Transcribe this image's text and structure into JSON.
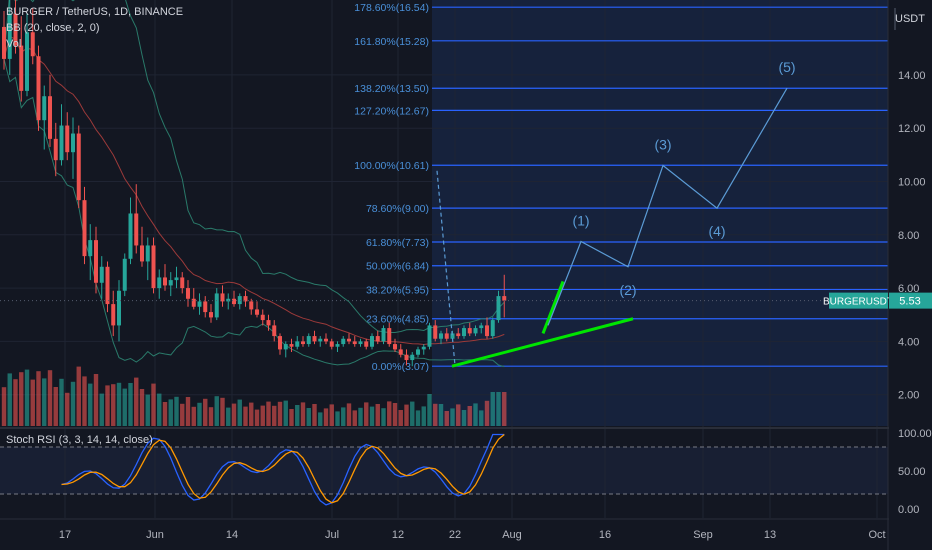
{
  "header": {
    "symbol_line": "BURGER / TetherUS, 1D, BINANCE",
    "bb_line": "BB (20, close, 2, 0)",
    "vol_line": "Vol"
  },
  "stoch": {
    "label": "Stoch RSI (3, 3, 14, 14, close)",
    "ticks": [
      "100.00",
      "50.00",
      "0.00"
    ]
  },
  "price_axis": {
    "unit": "USDT",
    "ticks": [
      "14.00",
      "12.00",
      "10.00",
      "8.00",
      "6.00",
      "4.00",
      "2.00"
    ],
    "badge_symbol": "BURGERUSDT",
    "badge_value": "5.53"
  },
  "time_axis": {
    "ticks": [
      "17",
      "Jun",
      "14",
      "Jul",
      "12",
      "22",
      "Aug",
      "16",
      "Sep",
      "13",
      "Oct"
    ]
  },
  "colors": {
    "background": "#131722",
    "up": "#26a69a",
    "down": "#ef5350",
    "fib_line": "#2962ff",
    "fib_text": "#4a90d9",
    "wave": "#5b9bd5",
    "trend": "#00e600",
    "badge": "#26a69a"
  },
  "chart_data": {
    "type": "candlestick",
    "fibonacci": [
      {
        "label": "178.60%(16.54)",
        "price": 16.54
      },
      {
        "label": "161.80%(15.28)",
        "price": 15.28
      },
      {
        "label": "138.20%(13.50)",
        "price": 13.5
      },
      {
        "label": "127.20%(12.67)",
        "price": 12.67
      },
      {
        "label": "100.00%(10.61)",
        "price": 10.61
      },
      {
        "label": "78.60%(9.00)",
        "price": 9.0
      },
      {
        "label": "61.80%(7.73)",
        "price": 7.73
      },
      {
        "label": "50.00%(6.84)",
        "price": 6.84
      },
      {
        "label": "38.20%(5.95)",
        "price": 5.95
      },
      {
        "label": "23.60%(4.85)",
        "price": 4.85
      },
      {
        "label": "0.00%(3.07)",
        "price": 3.07
      }
    ],
    "elliott_waves": [
      {
        "label": "(1)",
        "price": 7.75
      },
      {
        "label": "(2)",
        "price": 6.8
      },
      {
        "label": "(3)",
        "price": 10.6
      },
      {
        "label": "(4)",
        "price": 9.0
      },
      {
        "label": "(5)",
        "price": 13.5
      }
    ],
    "last_price": 5.53,
    "candles": [
      {
        "o": 15.8,
        "h": 16.4,
        "l": 14.2,
        "c": 14.6
      },
      {
        "o": 14.6,
        "h": 16.9,
        "l": 14.0,
        "c": 16.3
      },
      {
        "o": 16.3,
        "h": 17.0,
        "l": 14.8,
        "c": 15.1
      },
      {
        "o": 15.1,
        "h": 16.2,
        "l": 13.0,
        "c": 13.4
      },
      {
        "o": 13.4,
        "h": 16.3,
        "l": 13.2,
        "c": 15.6
      },
      {
        "o": 15.6,
        "h": 16.5,
        "l": 14.4,
        "c": 14.7
      },
      {
        "o": 14.7,
        "h": 15.1,
        "l": 11.9,
        "c": 12.3
      },
      {
        "o": 12.3,
        "h": 13.6,
        "l": 11.2,
        "c": 13.2
      },
      {
        "o": 13.2,
        "h": 14.0,
        "l": 11.3,
        "c": 11.6
      },
      {
        "o": 11.6,
        "h": 12.2,
        "l": 10.2,
        "c": 10.8
      },
      {
        "o": 10.8,
        "h": 12.9,
        "l": 10.6,
        "c": 12.1
      },
      {
        "o": 12.1,
        "h": 12.6,
        "l": 10.8,
        "c": 11.1
      },
      {
        "o": 11.1,
        "h": 12.4,
        "l": 10.1,
        "c": 11.8
      },
      {
        "o": 11.8,
        "h": 12.1,
        "l": 9.0,
        "c": 9.3
      },
      {
        "o": 9.3,
        "h": 9.8,
        "l": 6.9,
        "c": 7.2
      },
      {
        "o": 7.2,
        "h": 8.4,
        "l": 6.3,
        "c": 7.8
      },
      {
        "o": 7.8,
        "h": 8.3,
        "l": 5.8,
        "c": 6.2
      },
      {
        "o": 6.2,
        "h": 7.2,
        "l": 5.6,
        "c": 6.8
      },
      {
        "o": 6.8,
        "h": 7.0,
        "l": 5.1,
        "c": 5.4
      },
      {
        "o": 5.4,
        "h": 5.9,
        "l": 4.2,
        "c": 4.6
      },
      {
        "o": 4.6,
        "h": 6.3,
        "l": 4.0,
        "c": 5.9
      },
      {
        "o": 5.9,
        "h": 7.3,
        "l": 5.7,
        "c": 7.1
      },
      {
        "o": 7.1,
        "h": 9.4,
        "l": 6.9,
        "c": 8.8
      },
      {
        "o": 8.8,
        "h": 9.9,
        "l": 7.3,
        "c": 7.6
      },
      {
        "o": 7.6,
        "h": 8.3,
        "l": 6.8,
        "c": 7.0
      },
      {
        "o": 7.0,
        "h": 7.9,
        "l": 6.3,
        "c": 7.6
      },
      {
        "o": 7.6,
        "h": 7.9,
        "l": 5.8,
        "c": 6.0
      },
      {
        "o": 6.0,
        "h": 6.7,
        "l": 5.6,
        "c": 6.4
      },
      {
        "o": 6.4,
        "h": 6.9,
        "l": 5.9,
        "c": 6.1
      },
      {
        "o": 6.1,
        "h": 6.6,
        "l": 5.7,
        "c": 6.3
      },
      {
        "o": 6.3,
        "h": 6.8,
        "l": 6.0,
        "c": 6.4
      },
      {
        "o": 6.4,
        "h": 6.6,
        "l": 5.8,
        "c": 6.0
      },
      {
        "o": 6.0,
        "h": 6.3,
        "l": 5.3,
        "c": 5.6
      },
      {
        "o": 5.6,
        "h": 6.0,
        "l": 5.2,
        "c": 5.3
      },
      {
        "o": 5.3,
        "h": 5.8,
        "l": 5.0,
        "c": 5.5
      },
      {
        "o": 5.5,
        "h": 5.7,
        "l": 4.9,
        "c": 5.1
      },
      {
        "o": 5.1,
        "h": 5.4,
        "l": 4.7,
        "c": 4.9
      },
      {
        "o": 4.9,
        "h": 6.0,
        "l": 4.8,
        "c": 5.8
      },
      {
        "o": 5.8,
        "h": 6.1,
        "l": 5.3,
        "c": 5.5
      },
      {
        "o": 5.5,
        "h": 5.8,
        "l": 5.2,
        "c": 5.6
      },
      {
        "o": 5.6,
        "h": 5.9,
        "l": 5.3,
        "c": 5.4
      },
      {
        "o": 5.4,
        "h": 5.8,
        "l": 5.2,
        "c": 5.7
      },
      {
        "o": 5.7,
        "h": 5.9,
        "l": 5.3,
        "c": 5.5
      },
      {
        "o": 5.5,
        "h": 5.6,
        "l": 5.0,
        "c": 5.2
      },
      {
        "o": 5.2,
        "h": 5.5,
        "l": 4.9,
        "c": 5.0
      },
      {
        "o": 5.0,
        "h": 5.2,
        "l": 4.6,
        "c": 4.8
      },
      {
        "o": 4.8,
        "h": 5.0,
        "l": 4.4,
        "c": 4.6
      },
      {
        "o": 4.6,
        "h": 4.8,
        "l": 4.0,
        "c": 4.2
      },
      {
        "o": 4.2,
        "h": 4.3,
        "l": 3.5,
        "c": 3.7
      },
      {
        "o": 3.7,
        "h": 4.0,
        "l": 3.4,
        "c": 3.9
      },
      {
        "o": 3.9,
        "h": 4.1,
        "l": 3.6,
        "c": 3.8
      },
      {
        "o": 3.8,
        "h": 4.2,
        "l": 3.7,
        "c": 4.0
      },
      {
        "o": 4.0,
        "h": 4.2,
        "l": 3.8,
        "c": 3.9
      },
      {
        "o": 3.9,
        "h": 4.3,
        "l": 3.8,
        "c": 4.2
      },
      {
        "o": 4.2,
        "h": 4.4,
        "l": 3.9,
        "c": 4.0
      },
      {
        "o": 4.0,
        "h": 4.2,
        "l": 3.8,
        "c": 4.1
      },
      {
        "o": 4.1,
        "h": 4.3,
        "l": 3.9,
        "c": 4.0
      },
      {
        "o": 4.0,
        "h": 4.1,
        "l": 3.7,
        "c": 3.8
      },
      {
        "o": 3.8,
        "h": 4.0,
        "l": 3.6,
        "c": 3.9
      },
      {
        "o": 3.9,
        "h": 4.2,
        "l": 3.8,
        "c": 4.1
      },
      {
        "o": 4.1,
        "h": 4.3,
        "l": 3.9,
        "c": 4.0
      },
      {
        "o": 4.0,
        "h": 4.2,
        "l": 3.8,
        "c": 3.9
      },
      {
        "o": 3.9,
        "h": 4.1,
        "l": 3.8,
        "c": 4.0
      },
      {
        "o": 4.0,
        "h": 4.1,
        "l": 3.7,
        "c": 3.8
      },
      {
        "o": 3.8,
        "h": 4.3,
        "l": 3.7,
        "c": 4.2
      },
      {
        "o": 4.2,
        "h": 4.4,
        "l": 3.9,
        "c": 4.0
      },
      {
        "o": 4.0,
        "h": 4.6,
        "l": 3.9,
        "c": 4.5
      },
      {
        "o": 4.5,
        "h": 4.7,
        "l": 3.8,
        "c": 3.9
      },
      {
        "o": 3.9,
        "h": 4.1,
        "l": 3.6,
        "c": 3.7
      },
      {
        "o": 3.7,
        "h": 3.9,
        "l": 3.4,
        "c": 3.5
      },
      {
        "o": 3.5,
        "h": 3.7,
        "l": 3.1,
        "c": 3.3
      },
      {
        "o": 3.3,
        "h": 3.6,
        "l": 3.07,
        "c": 3.5
      },
      {
        "o": 3.5,
        "h": 3.8,
        "l": 3.4,
        "c": 3.7
      },
      {
        "o": 3.7,
        "h": 3.9,
        "l": 3.5,
        "c": 3.8
      },
      {
        "o": 3.8,
        "h": 4.7,
        "l": 3.7,
        "c": 4.6
      },
      {
        "o": 4.6,
        "h": 4.8,
        "l": 4.0,
        "c": 4.1
      },
      {
        "o": 4.1,
        "h": 4.4,
        "l": 3.9,
        "c": 4.3
      },
      {
        "o": 4.3,
        "h": 4.5,
        "l": 4.0,
        "c": 4.1
      },
      {
        "o": 4.1,
        "h": 4.4,
        "l": 4.0,
        "c": 4.3
      },
      {
        "o": 4.3,
        "h": 4.5,
        "l": 4.1,
        "c": 4.2
      },
      {
        "o": 4.2,
        "h": 4.6,
        "l": 4.1,
        "c": 4.5
      },
      {
        "o": 4.5,
        "h": 4.7,
        "l": 4.2,
        "c": 4.3
      },
      {
        "o": 4.3,
        "h": 4.6,
        "l": 4.2,
        "c": 4.5
      },
      {
        "o": 4.5,
        "h": 4.7,
        "l": 4.3,
        "c": 4.6
      },
      {
        "o": 4.6,
        "h": 4.9,
        "l": 4.1,
        "c": 4.2
      },
      {
        "o": 4.2,
        "h": 4.9,
        "l": 4.1,
        "c": 4.8
      },
      {
        "o": 4.8,
        "h": 5.9,
        "l": 4.7,
        "c": 5.7
      },
      {
        "o": 5.7,
        "h": 6.5,
        "l": 4.9,
        "c": 5.53
      }
    ]
  }
}
